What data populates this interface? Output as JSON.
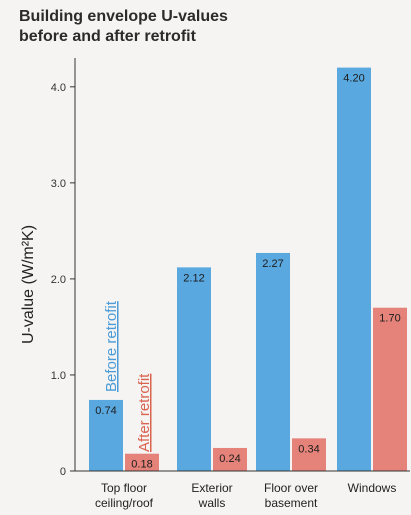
{
  "chart_data": {
    "type": "bar",
    "title_line1": "Building envelope U-values",
    "title_line2": "before and after retrofit",
    "xlabel": "",
    "ylabel": "U-value (W/m²K)",
    "ylim": [
      0,
      4.3
    ],
    "yticks": [
      "0",
      "1.0",
      "2.0",
      "3.0",
      "4.0"
    ],
    "grid": false,
    "categories": [
      [
        "Top floor",
        "ceiling/roof"
      ],
      [
        "Exterior",
        "walls"
      ],
      [
        "Floor over",
        "basement"
      ],
      [
        "Windows"
      ]
    ],
    "series": [
      {
        "name": "Before retrofit",
        "color": "#5aa8e0",
        "values": [
          0.74,
          2.12,
          2.27,
          4.2
        ],
        "labels": [
          "0.74",
          "2.12",
          "2.27",
          "4.20"
        ]
      },
      {
        "name": "After retrofit",
        "color": "#e5837a",
        "values": [
          0.18,
          0.24,
          0.34,
          1.7
        ],
        "labels": [
          "0.18",
          "0.24",
          "0.34",
          "1.70"
        ]
      }
    ],
    "legend": {
      "placement": "inside-left-vertical",
      "before_color": "#4a9bd8",
      "after_color": "#d9634f"
    },
    "axis_color": "#333333"
  }
}
